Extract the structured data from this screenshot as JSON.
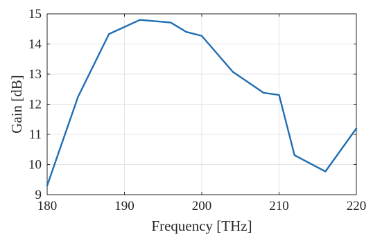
{
  "chart_data": {
    "type": "line",
    "xlabel": "Frequency [THz]",
    "ylabel": "Gain [dB]",
    "xlim": [
      180,
      220
    ],
    "ylim": [
      9,
      15
    ],
    "xticks": [
      180,
      190,
      200,
      210,
      220
    ],
    "yticks": [
      9,
      10,
      11,
      12,
      13,
      14,
      15
    ],
    "grid": true,
    "series": [
      {
        "color": "#1f6db2",
        "x": [
          180,
          184,
          188,
          192,
          196,
          198,
          200,
          204,
          208,
          210,
          212,
          216,
          220
        ],
        "y": [
          9.3,
          12.25,
          14.33,
          14.8,
          14.71,
          14.4,
          14.27,
          13.08,
          12.38,
          12.31,
          10.31,
          9.77,
          11.2
        ]
      }
    ]
  }
}
